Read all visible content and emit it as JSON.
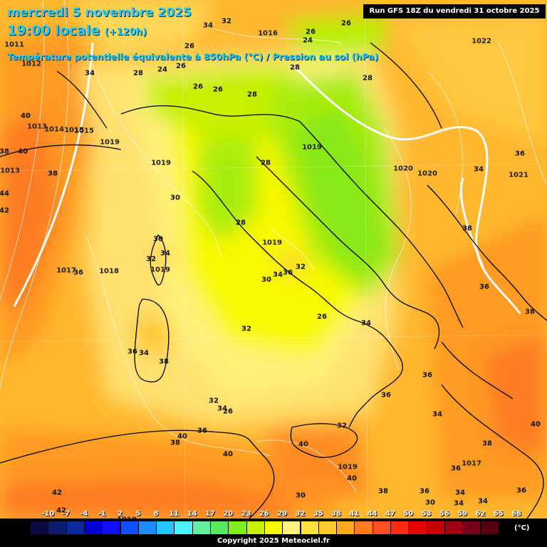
{
  "header": {
    "date_line": "mercredi 5 novembre 2025",
    "time_line": "19:00 locale",
    "time_offset": "(+120h)",
    "title": "Température potentielle équivalente à 850hPa (°C) / Pression au sol (hPa)",
    "run": "Run GFS 18Z du vendredi 31 octobre 2025"
  },
  "legend": {
    "values": [
      "-10",
      "-7",
      "-4",
      "-1",
      "2",
      "5",
      "8",
      "11",
      "14",
      "17",
      "20",
      "23",
      "26",
      "29",
      "32",
      "35",
      "38",
      "41",
      "44",
      "47",
      "50",
      "53",
      "56",
      "59",
      "62",
      "65",
      "68"
    ],
    "colors": [
      "#0a0a40",
      "#0d1d6e",
      "#0a2a9e",
      "#0000d8",
      "#1010ff",
      "#1050ff",
      "#1c8cff",
      "#28c4ff",
      "#50f0ff",
      "#60f0a0",
      "#58e860",
      "#7cf020",
      "#c8f000",
      "#f8f800",
      "#fff07a",
      "#ffe040",
      "#ffc830",
      "#ffa820",
      "#ff7a20",
      "#ff5028",
      "#ff2a10",
      "#e80000",
      "#c40000",
      "#9a0010",
      "#780018",
      "#560010",
      "#000000"
    ],
    "unit": "(°C)"
  },
  "copyright": "Copyright 2025 Meteociel.fr",
  "pressure_labels": [
    "1011",
    "1012",
    "1013",
    "1013",
    "1015",
    "1016",
    "1019",
    "1019",
    "1019",
    "1019",
    "1019",
    "1017",
    "1018",
    "1019",
    "1022",
    "1020",
    "1020",
    "1021",
    "1017",
    "1019",
    "1016",
    "1018",
    "1016",
    "1015",
    "1014"
  ],
  "temperature_labels": [
    "40",
    "38",
    "40",
    "38",
    "44",
    "42",
    "36",
    "34",
    "28",
    "26",
    "24",
    "32",
    "34",
    "26",
    "24",
    "26",
    "28",
    "28",
    "28",
    "26",
    "26",
    "28",
    "30",
    "32",
    "34",
    "30",
    "34",
    "28",
    "26",
    "26",
    "32",
    "34",
    "36",
    "30",
    "32",
    "36",
    "34",
    "38",
    "32",
    "26",
    "34",
    "36",
    "36",
    "36",
    "38",
    "34",
    "36",
    "38",
    "34",
    "32",
    "40",
    "40",
    "36",
    "38",
    "36",
    "34",
    "30",
    "30",
    "40",
    "34",
    "38",
    "34",
    "36",
    "36",
    "38",
    "40",
    "40",
    "42",
    "42",
    "38"
  ]
}
